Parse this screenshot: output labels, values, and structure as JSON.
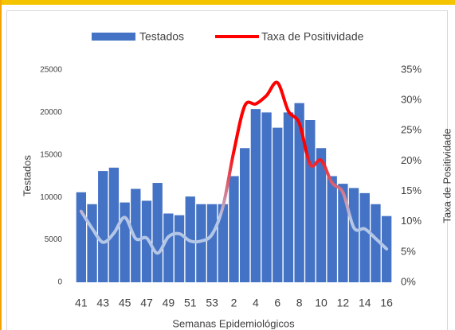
{
  "chart_data": {
    "type": "bar_line",
    "x_label": "Semanas Epidemiológicos",
    "y_label": "Testados",
    "y2_label": "Taxa de Positividade",
    "categories": [
      "41",
      null,
      "43",
      null,
      "45",
      null,
      "47",
      null,
      "49",
      null,
      "51",
      null,
      "53",
      null,
      "2",
      null,
      "4",
      null,
      "6",
      null,
      "8",
      null,
      "10",
      null,
      "12",
      null,
      "14",
      null,
      "16"
    ],
    "series": [
      {
        "name": "Testados",
        "type": "bar",
        "color": "#4472c4",
        "values": [
          10600,
          9200,
          13100,
          13500,
          9400,
          11000,
          9600,
          11700,
          8100,
          7900,
          10100,
          9200,
          9200,
          9200,
          12500,
          15800,
          20400,
          20000,
          18200,
          20000,
          21100,
          19100,
          15800,
          12500,
          11600,
          11100,
          10500,
          9200,
          7800
        ]
      },
      {
        "name": "Taxa de Positividade",
        "type": "line",
        "axis": "y2",
        "color": "#ff0000",
        "low_color": "#b4c7e7",
        "values": [
          11.7,
          8.9,
          6.6,
          8.1,
          10.7,
          7.2,
          7.3,
          4.8,
          7.5,
          8.0,
          6.8,
          6.8,
          7.9,
          12.5,
          21.6,
          29.1,
          29.4,
          30.8,
          32.9,
          28.2,
          26.2,
          19.4,
          20.1,
          16.4,
          14.8,
          9.0,
          8.8,
          7.2,
          5.5
        ]
      }
    ],
    "ylim": [
      0,
      25000
    ],
    "yticks": [
      0,
      5000,
      10000,
      15000,
      20000,
      25000
    ],
    "y2lim": [
      0,
      35
    ],
    "y2ticks": [
      {
        "value": 0,
        "label": "0%"
      },
      {
        "value": 5,
        "label": "5%"
      },
      {
        "value": 10,
        "label": "10%"
      },
      {
        "value": 15,
        "label": "15%"
      },
      {
        "value": 20,
        "label": "20%"
      },
      {
        "value": 25,
        "label": "25%"
      },
      {
        "value": 30,
        "label": "30%"
      },
      {
        "value": 35,
        "label": "35%"
      }
    ],
    "legend": "top"
  }
}
